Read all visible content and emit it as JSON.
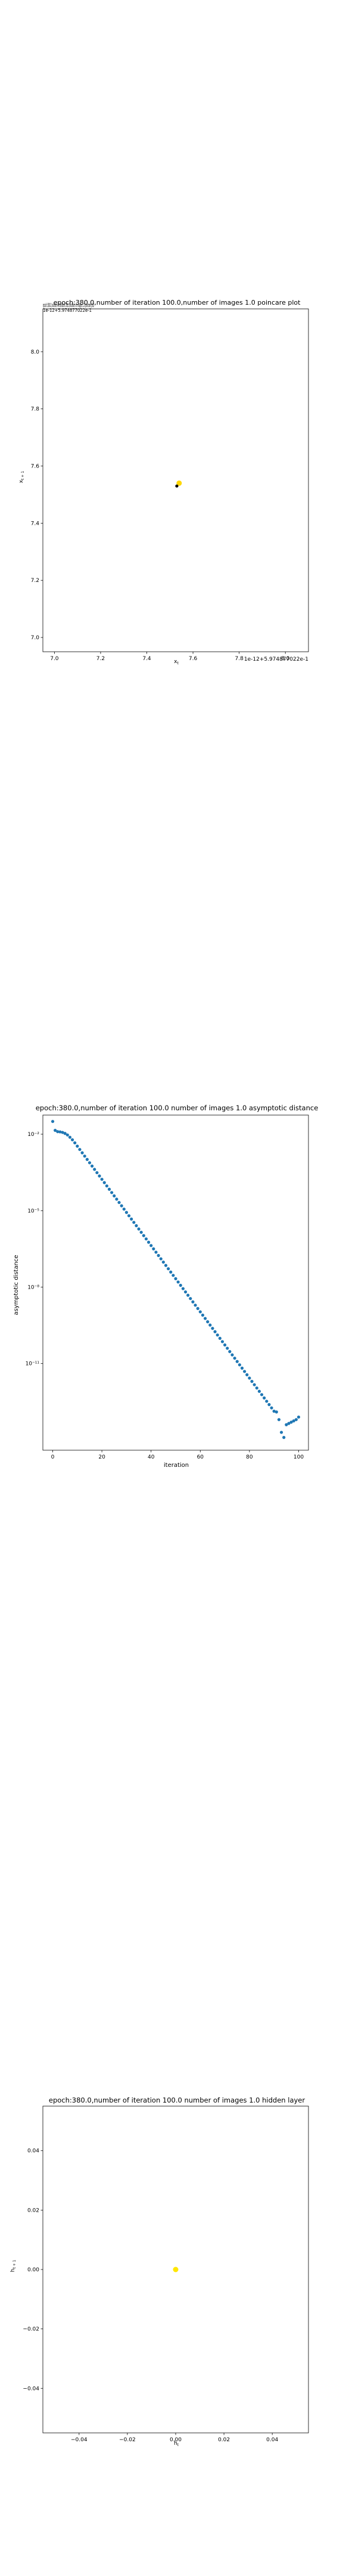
{
  "chart_data": [
    {
      "type": "scatter",
      "title": "epoch:380.0,number of iteration 100.0,number of images 1.0 poincare plot",
      "overlay_text": "epoch:380.0,number of iteration 100.0,number of images 1.0 poincare plot",
      "xlabel": "x_t",
      "ylabel": "x_{t+1}",
      "xlim": [
        6.95,
        8.1
      ],
      "ylim": [
        6.95,
        8.15
      ],
      "x_ticks": [
        7.0,
        7.2,
        7.4,
        7.6,
        7.8,
        8.0
      ],
      "x_tick_labels": [
        "7.0",
        "7.2",
        "7.4",
        "7.6",
        "7.8",
        "8.0"
      ],
      "y_ticks": [
        7.0,
        7.2,
        7.4,
        7.6,
        7.8,
        8.0
      ],
      "y_tick_labels": [
        "7.0",
        "7.2",
        "7.4",
        "7.6",
        "7.8",
        "8.0"
      ],
      "x_offset_text": "1e-12+5.974877022e-1",
      "y_offset_text": "1e-12+5.974877022e-1",
      "grid": false,
      "series": [
        {
          "marker": "circle",
          "color": "#ffd700",
          "points": [
            [
              7.54,
              7.54
            ]
          ]
        },
        {
          "marker": "circle",
          "color": "#000000",
          "points": [
            [
              7.53,
              7.53
            ]
          ]
        }
      ]
    },
    {
      "type": "scatter",
      "title": "epoch:380.0,number of iteration 100.0  number of images 1.0 asymptotic distance",
      "xlabel": "iteration",
      "ylabel": "asymptotic distance",
      "xlim": [
        -4,
        104
      ],
      "ylim_log10": [
        -14.4,
        -1.25
      ],
      "y_scale": "log",
      "x_ticks": [
        0,
        20,
        40,
        60,
        80,
        100
      ],
      "x_tick_labels": [
        "0",
        "20",
        "40",
        "60",
        "80",
        "100"
      ],
      "y_ticks_log10": [
        -2,
        -5,
        -8,
        -11
      ],
      "y_tick_labels": [
        "10⁻²",
        "10⁻⁵",
        "10⁻⁸",
        "10⁻¹¹"
      ],
      "grid": false,
      "color": "#1f77b4",
      "x": [
        0,
        1,
        2,
        3,
        4,
        5,
        6,
        7,
        8,
        9,
        10,
        11,
        12,
        13,
        14,
        15,
        16,
        17,
        18,
        19,
        20,
        21,
        22,
        23,
        24,
        25,
        26,
        27,
        28,
        29,
        30,
        31,
        32,
        33,
        34,
        35,
        36,
        37,
        38,
        39,
        40,
        41,
        42,
        43,
        44,
        45,
        46,
        47,
        48,
        49,
        50,
        51,
        52,
        53,
        54,
        55,
        56,
        57,
        58,
        59,
        60,
        61,
        62,
        63,
        64,
        65,
        66,
        67,
        68,
        69,
        70,
        71,
        72,
        73,
        74,
        75,
        76,
        77,
        78,
        79,
        80,
        81,
        82,
        83,
        84,
        85,
        86,
        87,
        88,
        89,
        90,
        91,
        92,
        93,
        94,
        95,
        96,
        97,
        98,
        99,
        100
      ],
      "y_log10": [
        -1.5,
        -1.85,
        -1.9,
        -1.91,
        -1.93,
        -1.97,
        -2.03,
        -2.12,
        -2.22,
        -2.34,
        -2.47,
        -2.6,
        -2.73,
        -2.86,
        -2.99,
        -3.12,
        -3.25,
        -3.38,
        -3.51,
        -3.64,
        -3.77,
        -3.9,
        -4.03,
        -4.16,
        -4.29,
        -4.42,
        -4.55,
        -4.68,
        -4.81,
        -4.94,
        -5.07,
        -5.2,
        -5.33,
        -5.46,
        -5.59,
        -5.72,
        -5.85,
        -5.98,
        -6.11,
        -6.24,
        -6.37,
        -6.5,
        -6.63,
        -6.76,
        -6.89,
        -7.02,
        -7.15,
        -7.28,
        -7.41,
        -7.54,
        -7.67,
        -7.8,
        -7.93,
        -8.06,
        -8.19,
        -8.32,
        -8.45,
        -8.58,
        -8.71,
        -8.84,
        -8.97,
        -9.1,
        -9.23,
        -9.36,
        -9.49,
        -9.62,
        -9.75,
        -9.88,
        -10.01,
        -10.14,
        -10.27,
        -10.4,
        -10.53,
        -10.66,
        -10.79,
        -10.92,
        -11.05,
        -11.18,
        -11.31,
        -11.44,
        -11.57,
        -11.7,
        -11.83,
        -11.96,
        -12.09,
        -12.22,
        -12.35,
        -12.48,
        -12.61,
        -12.74,
        -12.87,
        -12.9,
        -13.2,
        -13.7,
        -13.9,
        -13.4,
        -13.35,
        -13.3,
        -13.25,
        -13.2,
        -13.1
      ]
    },
    {
      "type": "scatter",
      "title": "epoch:380.0,number of iteration 100.0  number of images 1.0 hidden layer",
      "xlabel": "h_t",
      "ylabel": "h_{t+1}",
      "xlim": [
        -0.055,
        0.055
      ],
      "ylim": [
        -0.055,
        0.055
      ],
      "x_ticks": [
        -0.04,
        -0.02,
        0.0,
        0.02,
        0.04
      ],
      "x_tick_labels": [
        "−0.04",
        "−0.02",
        "0.00",
        "0.02",
        "0.04"
      ],
      "y_ticks": [
        0.04,
        0.02,
        0.0,
        -0.02,
        -0.04
      ],
      "y_tick_labels": [
        "0.04",
        "0.02",
        "0.00",
        "−0.02",
        "−0.04"
      ],
      "grid": false,
      "series": [
        {
          "marker": "circle",
          "color": "#ffe600",
          "points": [
            [
              0.0,
              0.0
            ]
          ]
        }
      ]
    }
  ]
}
